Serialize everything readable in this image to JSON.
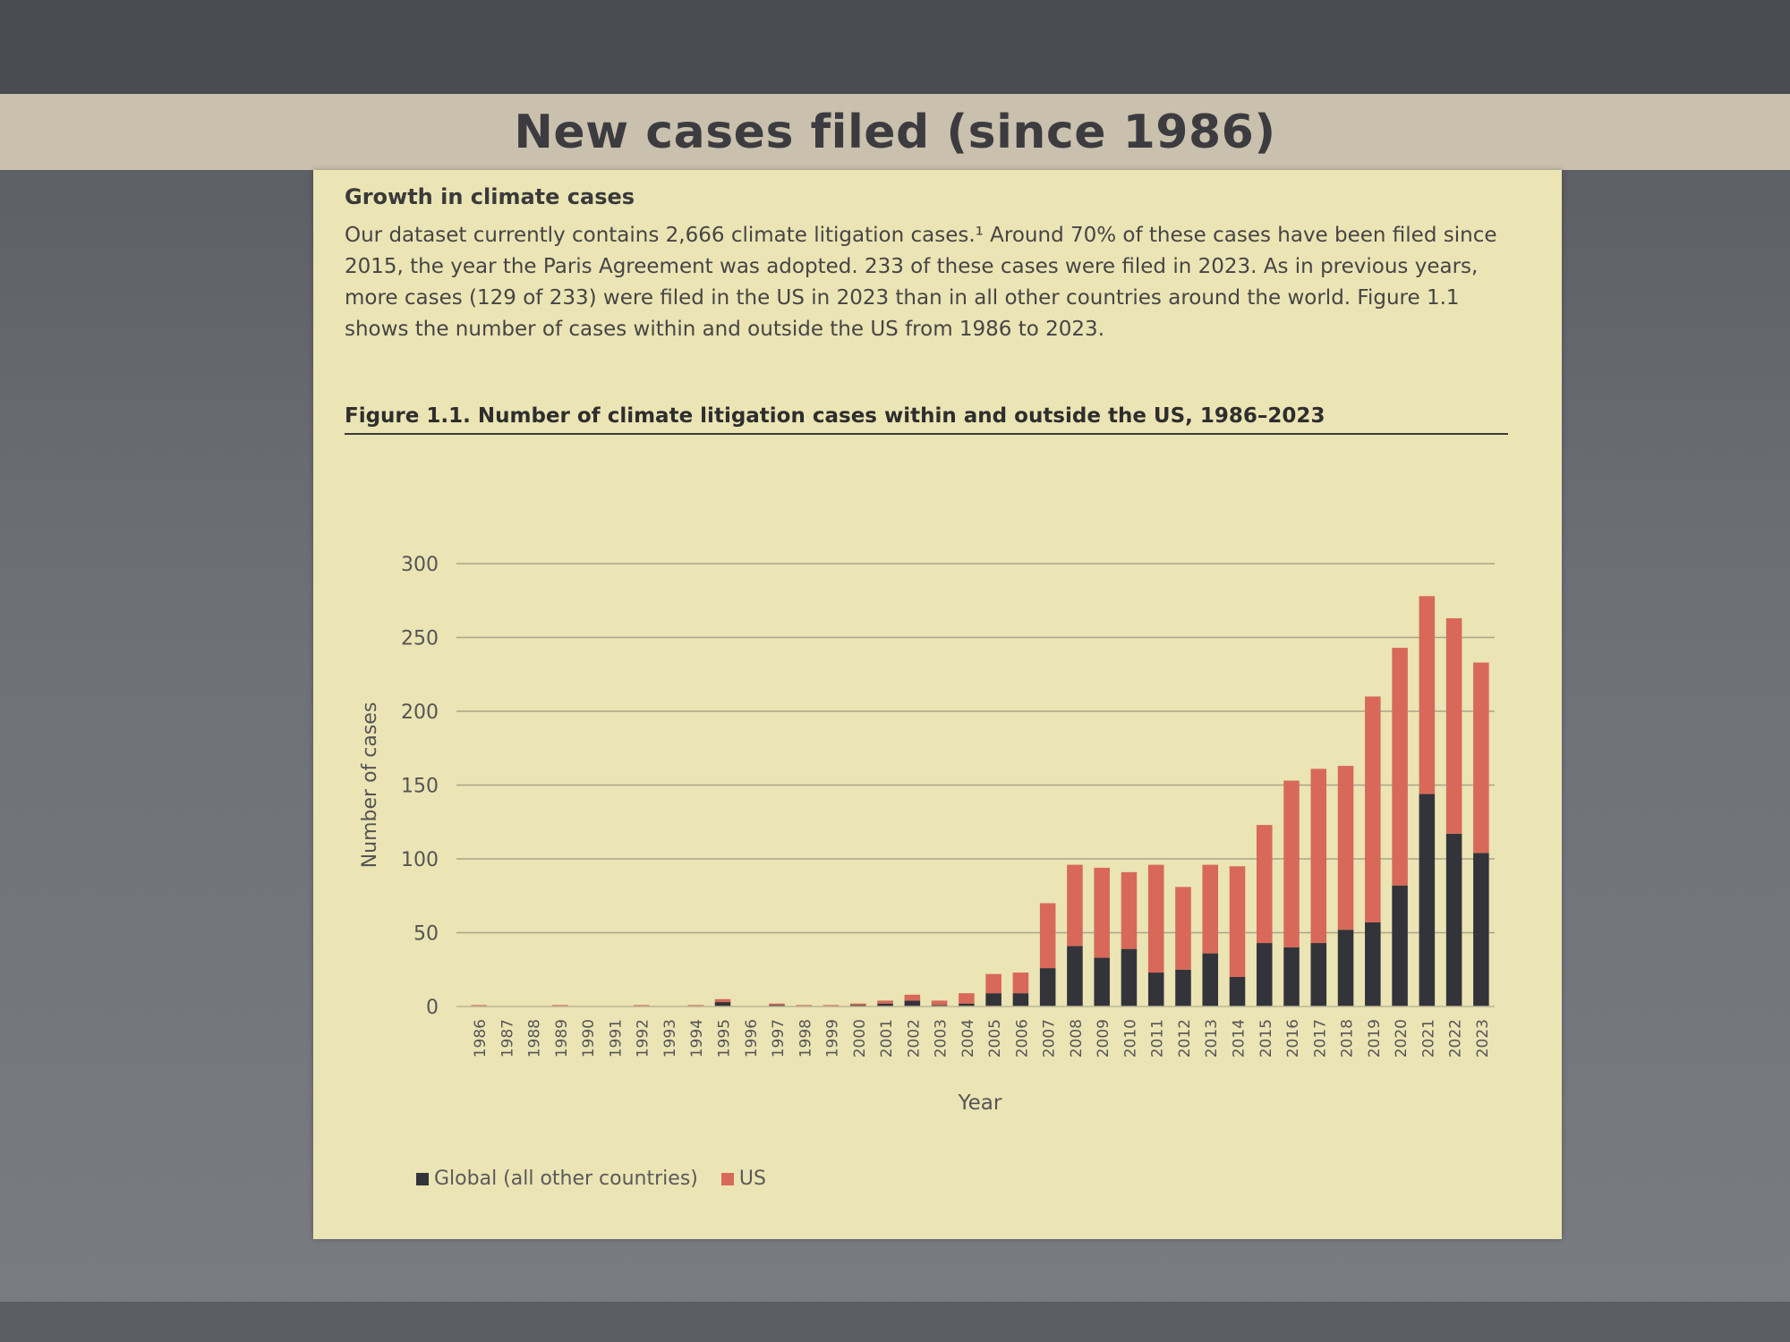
{
  "slide": {
    "title": "New cases filed (since 1986)"
  },
  "section": {
    "heading": "Growth in climate cases",
    "body": "Our dataset currently contains 2,666 climate litigation cases.¹ Around 70% of these cases have been filed since 2015, the year the Paris Agreement was adopted. 233 of these cases were filed in 2023. As in previous years, more cases (129 of 233) were filed in the US in 2023 than in all other countries around the world. Figure 1.1 shows the number of cases within and outside the US from 1986 to 2023."
  },
  "figure_title": "Figure 1.1. Number of climate litigation cases within and outside the US, 1986–2023",
  "colors": {
    "global": "#33343a",
    "us": "#d8695a",
    "grid": "#a9a48a",
    "axis_text": "#555555"
  },
  "chart_data": {
    "type": "bar",
    "stacked": true,
    "xlabel": "Year",
    "ylabel": "Number of cases",
    "ylim": [
      0,
      300
    ],
    "yticks": [
      0,
      50,
      100,
      150,
      200,
      250,
      300
    ],
    "grid": true,
    "legend_position": "bottom-left",
    "categories": [
      "1986",
      "1987",
      "1988",
      "1989",
      "1990",
      "1991",
      "1992",
      "1993",
      "1994",
      "1995",
      "1996",
      "1997",
      "1998",
      "1999",
      "2000",
      "2001",
      "2002",
      "2003",
      "2004",
      "2005",
      "2006",
      "2007",
      "2008",
      "2009",
      "2010",
      "2011",
      "2012",
      "2013",
      "2014",
      "2015",
      "2016",
      "2017",
      "2018",
      "2019",
      "2020",
      "2021",
      "2022",
      "2023"
    ],
    "series": [
      {
        "name": "Global (all other countries)",
        "color": "#33343a",
        "values": [
          0,
          0,
          0,
          0,
          0,
          0,
          0,
          0,
          0,
          3,
          0,
          1,
          0,
          0,
          1,
          2,
          4,
          1,
          2,
          9,
          9,
          26,
          41,
          33,
          39,
          23,
          25,
          36,
          20,
          43,
          40,
          43,
          52,
          57,
          82,
          144,
          117,
          104
        ]
      },
      {
        "name": "US",
        "color": "#d8695a",
        "values": [
          1,
          0,
          0,
          1,
          0,
          0,
          1,
          0,
          1,
          2,
          0,
          1,
          1,
          1,
          1,
          2,
          4,
          3,
          7,
          13,
          14,
          44,
          55,
          61,
          52,
          73,
          56,
          60,
          75,
          80,
          113,
          118,
          111,
          153,
          161,
          134,
          146,
          129
        ]
      }
    ]
  }
}
